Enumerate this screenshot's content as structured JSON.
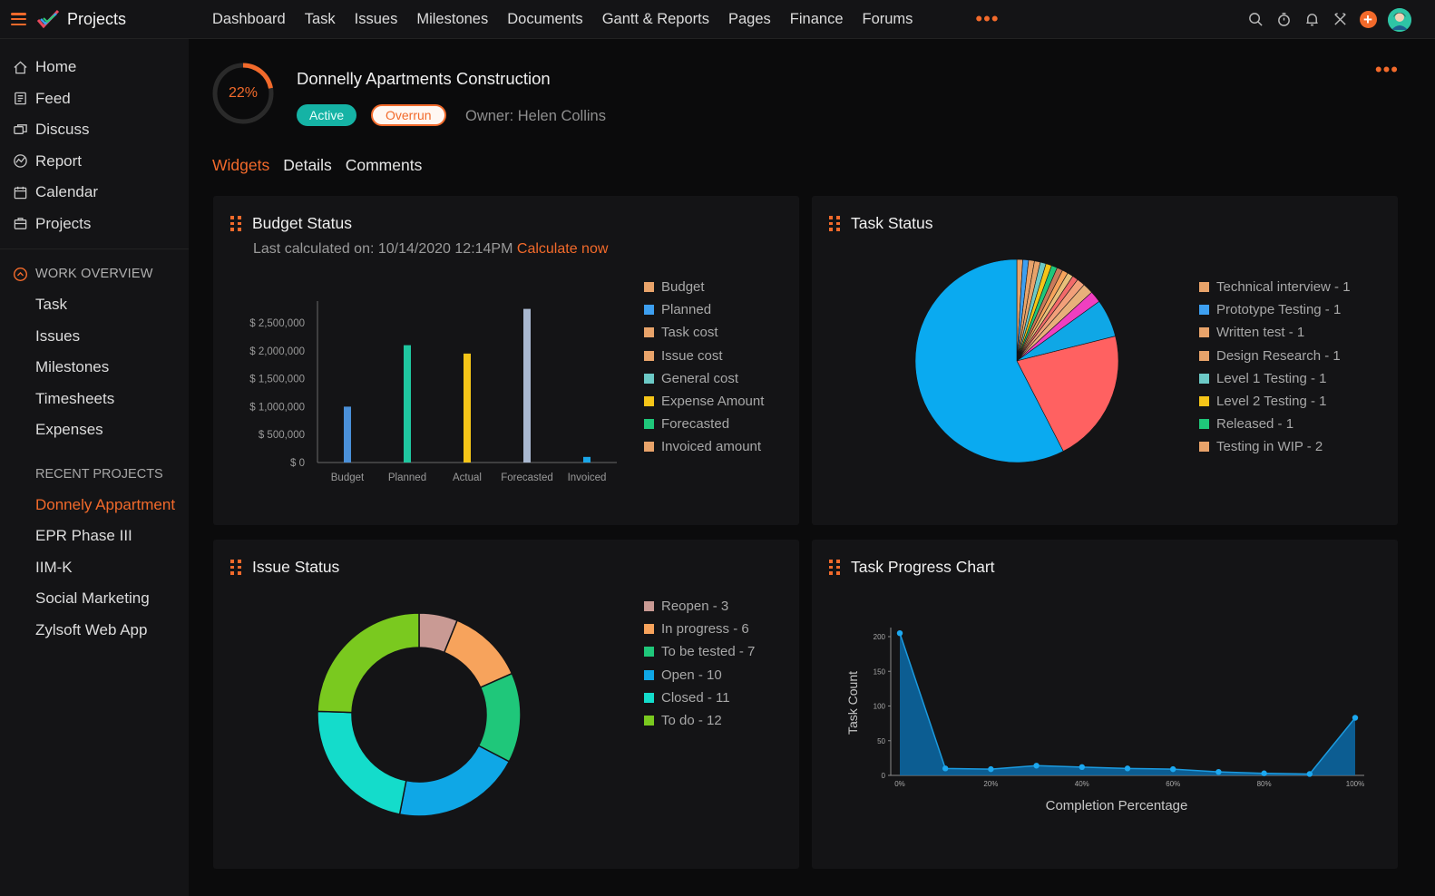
{
  "app": {
    "title": "Projects"
  },
  "sidebar": {
    "main": [
      {
        "label": "Home",
        "icon": "home-icon"
      },
      {
        "label": "Feed",
        "icon": "feed-icon"
      },
      {
        "label": "Discuss",
        "icon": "discuss-icon"
      },
      {
        "label": "Report",
        "icon": "report-icon"
      },
      {
        "label": "Calendar",
        "icon": "calendar-icon"
      },
      {
        "label": "Projects",
        "icon": "projects-icon"
      }
    ],
    "work_overview": {
      "heading": "WORK OVERVIEW",
      "items": [
        "Task",
        "Issues",
        "Milestones",
        "Timesheets",
        "Expenses"
      ]
    },
    "recent": {
      "heading": "RECENT PROJECTS",
      "items": [
        "Donnely Appartment",
        "EPR Phase III",
        "IIM-K",
        "Social Marketing",
        "Zylsoft Web App"
      ]
    }
  },
  "topnav": {
    "items": [
      "Dashboard",
      "Task",
      "Issues",
      "Milestones",
      "Documents",
      "Gantt & Reports",
      "Pages",
      "Finance",
      "Forums"
    ],
    "more": "•••"
  },
  "project": {
    "progress_label": "22%",
    "progress_value": 0.22,
    "title": "Donnelly Apartments Construction",
    "status_badge": "Active",
    "overrun_badge": "Overrun",
    "owner": "Owner: Helen Collins",
    "more": "•••"
  },
  "tabs": [
    "Widgets",
    "Details",
    "Comments"
  ],
  "colors": {
    "accent": "#f26a2b",
    "active_badge": "#15b3a5"
  },
  "widgets": {
    "budget": {
      "title": "Budget Status",
      "calc_text": "Last calculated on: 10/14/2020 12:14PM",
      "calc_link": "Calculate now",
      "legend": [
        {
          "label": "Budget",
          "color": "#e8a36a"
        },
        {
          "label": "Planned",
          "color": "#3d9ff0"
        },
        {
          "label": "Task cost",
          "color": "#e8a36a"
        },
        {
          "label": "Issue cost",
          "color": "#e8a36a"
        },
        {
          "label": "General cost",
          "color": "#6cc9c6"
        },
        {
          "label": "Expense Amount",
          "color": "#f5c518"
        },
        {
          "label": "Forecasted",
          "color": "#1fc77a"
        },
        {
          "label": "Invoiced amount",
          "color": "#e8a36a"
        }
      ]
    },
    "task": {
      "title": "Task Status",
      "legend": [
        {
          "label": "Technical interview - 1",
          "color": "#e8a36a"
        },
        {
          "label": "Prototype Testing - 1",
          "color": "#3d9ff0"
        },
        {
          "label": "Written test - 1",
          "color": "#e8a36a"
        },
        {
          "label": "Design Research - 1",
          "color": "#e8a36a"
        },
        {
          "label": "Level 1 Testing - 1",
          "color": "#6cc9c6"
        },
        {
          "label": "Level 2 Testing - 1",
          "color": "#f5c518"
        },
        {
          "label": "Released - 1",
          "color": "#1fc77a"
        },
        {
          "label": "Testing in WIP - 2",
          "color": "#e8a36a"
        }
      ]
    },
    "issue": {
      "title": "Issue Status",
      "legend": [
        {
          "label": "Reopen - 3",
          "color": "#c99a94"
        },
        {
          "label": "In progress - 6",
          "color": "#f7a35c"
        },
        {
          "label": "To be tested - 7",
          "color": "#1fc77a"
        },
        {
          "label": "Open - 10",
          "color": "#0fa7e6"
        },
        {
          "label": "Closed - 11",
          "color": "#14dccb"
        },
        {
          "label": "To do - 12",
          "color": "#7ac91f"
        }
      ]
    },
    "progress": {
      "title": "Task Progress Chart"
    }
  },
  "chart_data": [
    {
      "type": "bar",
      "title": "Budget Status",
      "categories": [
        "Budget",
        "Planned",
        "Actual",
        "Forecasted",
        "Invoiced"
      ],
      "values": [
        1000000,
        2100000,
        1950000,
        2750000,
        100000
      ],
      "colors": [
        "#4a90d9",
        "#1fc7a0",
        "#f5c518",
        "#a9b8d0",
        "#1aa6e8"
      ],
      "yticks": [
        "$ 0",
        "$ 500,000",
        "$ 1,000,000",
        "$ 1,500,000",
        "$ 2,000,000",
        "$ 2,500,000"
      ],
      "ylim": [
        0,
        2500000
      ],
      "grid": false
    },
    {
      "type": "pie",
      "title": "Task Status",
      "slices": [
        {
          "value": 1,
          "color": "#e8a36a"
        },
        {
          "value": 1,
          "color": "#3d9ff0"
        },
        {
          "value": 1,
          "color": "#e8a36a"
        },
        {
          "value": 1,
          "color": "#e8a36a"
        },
        {
          "value": 1,
          "color": "#6cc9c6"
        },
        {
          "value": 1,
          "color": "#f5c518"
        },
        {
          "value": 1,
          "color": "#1fc77a"
        },
        {
          "value": 1,
          "color": "#c97a5a"
        },
        {
          "value": 1,
          "color": "#f7a35c"
        },
        {
          "value": 1,
          "color": "#e8c07a"
        },
        {
          "value": 1,
          "color": "#f26a6a"
        },
        {
          "value": 1.4,
          "color": "#f2a07a"
        },
        {
          "value": 1.8,
          "color": "#e8b07a"
        },
        {
          "value": 2,
          "color": "#f03fc0"
        },
        {
          "value": 6.5,
          "color": "#0fa7e6"
        },
        {
          "value": 23,
          "color": "#ff6161"
        },
        {
          "value": 62,
          "color": "#0aaaf0"
        }
      ]
    },
    {
      "type": "pie",
      "title": "Issue Status",
      "donut": true,
      "slices": [
        {
          "label": "Reopen",
          "value": 3,
          "color": "#c99a94"
        },
        {
          "label": "In progress",
          "value": 6,
          "color": "#f7a35c"
        },
        {
          "label": "To be tested",
          "value": 7,
          "color": "#1fc77a"
        },
        {
          "label": "Open",
          "value": 10,
          "color": "#0fa7e6"
        },
        {
          "label": "Closed",
          "value": 11,
          "color": "#14dccb"
        },
        {
          "label": "To do",
          "value": 12,
          "color": "#7ac91f"
        }
      ]
    },
    {
      "type": "area",
      "title": "Task Progress Chart",
      "xlabel": "Completion Percentage",
      "ylabel": "Task Count",
      "x": [
        0,
        10,
        20,
        30,
        40,
        50,
        60,
        70,
        80,
        90,
        100
      ],
      "y": [
        205,
        10,
        9,
        14,
        12,
        10,
        9,
        5,
        3,
        2,
        83
      ],
      "xticks": [
        "0%",
        "20%",
        "40%",
        "60%",
        "80%",
        "100%"
      ],
      "yticks": [
        "0",
        "50",
        "100",
        "150",
        "200"
      ],
      "ylim": [
        0,
        200
      ],
      "xlim": [
        0,
        100
      ],
      "color": "#0a6aa8"
    }
  ]
}
